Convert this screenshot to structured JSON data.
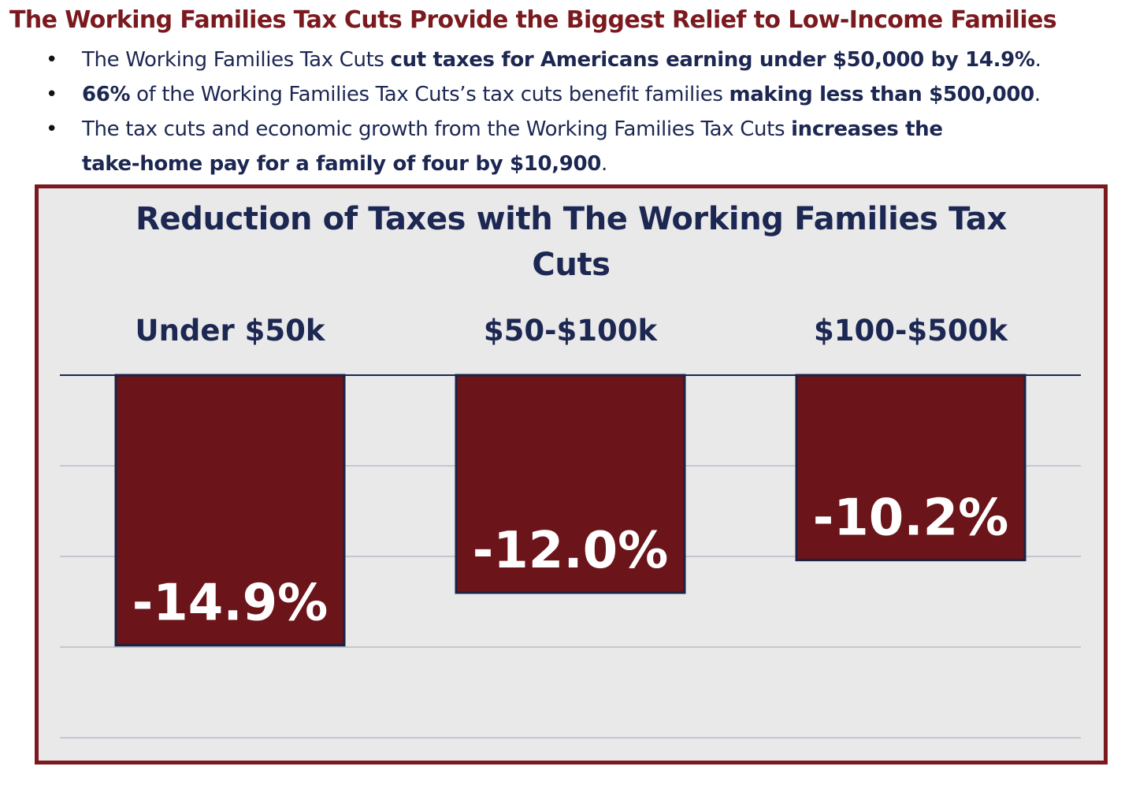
{
  "headline": "The Working Families Tax Cuts Provide the Biggest Relief to Low-Income Families",
  "bullets": [
    {
      "a": "The Working Families Tax Cuts ",
      "b": "cut taxes for Americans earning under $50,000 by 14.9%",
      "c": "."
    },
    {
      "a": "66%",
      "b": " of the Working Families Tax Cuts’s tax cuts benefit families ",
      "c": "making less than $500,000",
      "d": "."
    },
    {
      "line1_a": "The tax cuts and economic growth from the Working Families Tax Cuts ",
      "line1_b": "increases the",
      "line2_b": "take-home pay for a family of four by $10,900",
      "line2_c": "."
    }
  ],
  "colors": {
    "accent": "#7a1a1e",
    "navy": "#1c2752",
    "bar_fill": "#6b1419",
    "bar_border": "#1a2245",
    "chart_bg": "#e9e9ea",
    "grid": "#b9bcc6"
  },
  "chart_data": {
    "type": "bar",
    "orientation": "vertical-negative",
    "title_line1": "Reduction of Taxes with The Working Families Tax",
    "title_line2": "Cuts",
    "categories": [
      "Under $50k",
      "$50-$100k",
      "$100-$500k"
    ],
    "values": [
      -14.9,
      -12.0,
      -10.2
    ],
    "labels": [
      "-14.9%",
      "-12.0%",
      "-10.2%"
    ],
    "ylim": [
      -20,
      0
    ],
    "gridlines": [
      0,
      -5,
      -10,
      -15,
      -20
    ],
    "category_labels_position": "top",
    "legend": "none"
  }
}
